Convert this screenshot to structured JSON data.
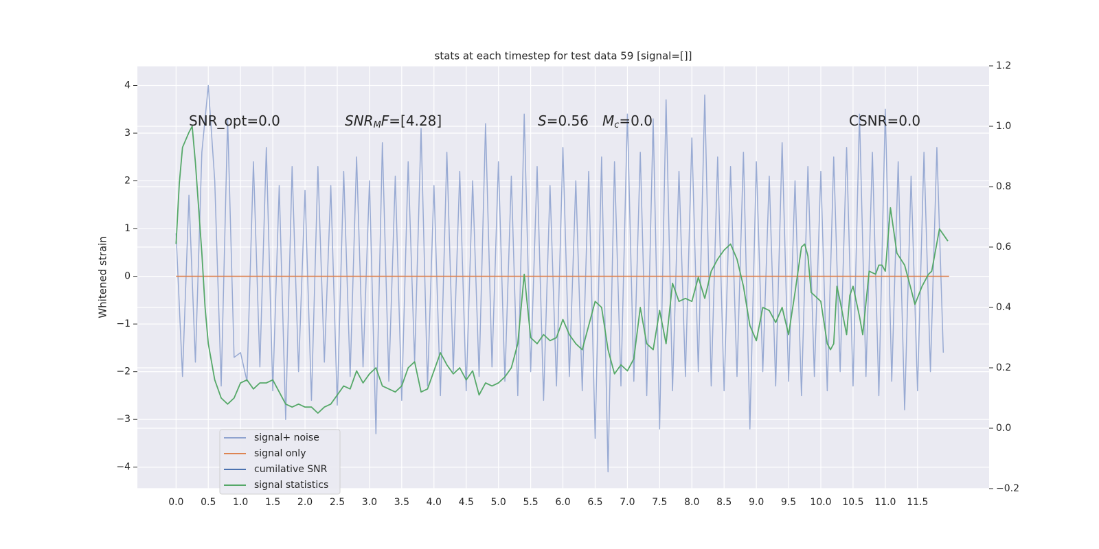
{
  "chart_data": {
    "type": "line",
    "title": "stats at each timestep for test data 59 [signal=[]]",
    "ylabel": "Whitened strain",
    "xlim": [
      -0.6,
      12.61
    ],
    "ylim": [
      -4.45,
      4.41
    ],
    "y2lim": [
      -0.2,
      1.2
    ],
    "xticks": [
      {
        "value": 0,
        "label": "0.0"
      },
      0.5,
      {
        "value": 1,
        "label": "1.0"
      },
      1.5,
      {
        "value": 2,
        "label": "2.0"
      },
      2.5,
      {
        "value": 3,
        "label": "3.0"
      },
      3.5,
      {
        "value": 4,
        "label": "4.0"
      },
      4.5,
      {
        "value": 5,
        "label": "5.0"
      },
      5.5,
      {
        "value": 6,
        "label": "6.0"
      },
      6.5,
      {
        "value": 7,
        "label": "7.0"
      },
      7.5,
      {
        "value": 8,
        "label": "8.0"
      },
      8.5,
      {
        "value": 9,
        "label": "9.0"
      },
      9.5,
      {
        "value": 10,
        "label": "10.0"
      },
      10.5,
      {
        "value": 11,
        "label": "11.0"
      },
      11.5
    ],
    "yticks": [
      {
        "value": -4,
        "label": "−4"
      },
      {
        "value": -3,
        "label": "−3"
      },
      {
        "value": -2,
        "label": "−2"
      },
      {
        "value": -1,
        "label": "−1"
      },
      0,
      1,
      2,
      3,
      4
    ],
    "y2ticks": [
      {
        "value": -0.2,
        "label": "−0.2"
      },
      {
        "value": 0,
        "label": "0.0"
      },
      0.2,
      0.4,
      0.6,
      0.8,
      {
        "value": 1,
        "label": "1.0"
      },
      1.2
    ],
    "grid": true,
    "annotations": [
      [
        {
          "text": "SNR_opt=0.0",
          "style": "normal"
        }
      ],
      [
        {
          "text": "SNR",
          "style": "italic"
        },
        {
          "text": "M",
          "style": "italic-sub"
        },
        {
          "text": "F",
          "style": "italic"
        },
        {
          "text": "=[4.28]",
          "style": "normal"
        }
      ],
      [
        {
          "text": "S",
          "style": "italic"
        },
        {
          "text": "=0.56",
          "style": "normal"
        }
      ],
      [
        {
          "text": "M",
          "style": "italic"
        },
        {
          "text": "c",
          "style": "italic-sub"
        },
        {
          "text": "=0.0",
          "style": "normal"
        }
      ],
      [
        {
          "text": "CSNR=0.0",
          "style": "normal"
        }
      ]
    ],
    "series": [
      {
        "name": "signal+ noise",
        "color": "#8fa3cf",
        "axis": "y",
        "x": [
          0,
          0.1,
          0.2,
          0.3,
          0.4,
          0.5,
          0.6,
          0.7,
          0.8,
          0.9,
          1,
          1.1,
          1.2,
          1.3,
          1.4,
          1.5,
          1.6,
          1.7,
          1.8,
          1.9,
          2,
          2.1,
          2.2,
          2.3,
          2.4,
          2.5,
          2.6,
          2.7,
          2.8,
          2.9,
          3,
          3.1,
          3.2,
          3.3,
          3.4,
          3.5,
          3.6,
          3.7,
          3.8,
          3.9,
          4,
          4.1,
          4.2,
          4.3,
          4.4,
          4.5,
          4.6,
          4.7,
          4.8,
          4.9,
          5,
          5.1,
          5.2,
          5.3,
          5.4,
          5.5,
          5.6,
          5.7,
          5.8,
          5.9,
          6,
          6.1,
          6.2,
          6.3,
          6.4,
          6.5,
          6.6,
          6.7,
          6.8,
          6.9,
          7,
          7.1,
          7.2,
          7.3,
          7.4,
          7.5,
          7.6,
          7.7,
          7.8,
          7.9,
          8,
          8.1,
          8.2,
          8.3,
          8.4,
          8.5,
          8.6,
          8.7,
          8.8,
          8.9,
          9,
          9.1,
          9.2,
          9.3,
          9.4,
          9.5,
          9.6,
          9.7,
          9.8,
          9.9,
          10,
          10.1,
          10.2,
          10.3,
          10.4,
          10.5,
          10.6,
          10.7,
          10.8,
          10.9,
          11,
          11.1,
          11.2,
          11.3,
          11.4,
          11.5,
          11.6,
          11.7,
          11.8,
          11.9
        ],
        "values": [
          0.9,
          -2.1,
          1.7,
          -1.8,
          2.6,
          4.0,
          2.0,
          -2.3,
          3.3,
          -1.7,
          -1.6,
          -2.2,
          2.4,
          -1.9,
          2.7,
          -2.4,
          1.9,
          -3.0,
          2.3,
          -2.0,
          1.8,
          -2.6,
          2.3,
          -1.8,
          1.9,
          -2.7,
          2.2,
          -2.1,
          2.5,
          -1.9,
          2.0,
          -3.3,
          2.8,
          -2.2,
          2.1,
          -2.6,
          2.4,
          -1.8,
          3.1,
          -2.3,
          1.9,
          -2.5,
          2.6,
          -2.0,
          2.2,
          -2.4,
          2.0,
          -2.1,
          3.2,
          -1.9,
          2.4,
          -2.2,
          2.1,
          -2.5,
          3.4,
          -2.0,
          2.3,
          -2.6,
          1.9,
          -2.3,
          2.7,
          -2.1,
          2.0,
          -2.4,
          2.2,
          -3.4,
          2.5,
          -4.1,
          2.4,
          -2.3,
          3.4,
          -2.2,
          2.6,
          -2.5,
          3.3,
          -3.2,
          3.7,
          -2.4,
          2.2,
          -2.1,
          2.9,
          -2.0,
          3.8,
          -2.3,
          2.5,
          -2.4,
          2.3,
          -2.1,
          2.6,
          -3.2,
          2.4,
          -2.0,
          2.1,
          -2.3,
          2.8,
          -2.2,
          2.0,
          -2.5,
          2.3,
          -2.1,
          2.2,
          -2.4,
          2.5,
          -2.0,
          2.7,
          -2.3,
          3.4,
          -2.1,
          2.6,
          -2.5,
          3.5,
          -2.2,
          2.4,
          -2.8,
          2.1,
          -2.4,
          2.6,
          -2.0,
          2.7,
          -1.6
        ]
      },
      {
        "name": "signal only",
        "color": "#dd8452",
        "axis": "y",
        "x": [
          0,
          11.99
        ],
        "values": [
          0,
          0
        ]
      },
      {
        "name": "cumilative SNR",
        "color": "#4c72b0",
        "axis": "y2",
        "x": [],
        "values": []
      },
      {
        "name": "signal statistics",
        "color": "#55a868",
        "axis": "y2",
        "x": [
          0,
          0.05,
          0.1,
          0.2,
          0.25,
          0.3,
          0.4,
          0.45,
          0.5,
          0.6,
          0.7,
          0.8,
          0.9,
          1,
          1.1,
          1.2,
          1.3,
          1.4,
          1.5,
          1.6,
          1.7,
          1.8,
          1.9,
          2,
          2.1,
          2.2,
          2.3,
          2.4,
          2.5,
          2.6,
          2.7,
          2.8,
          2.9,
          3,
          3.1,
          3.2,
          3.3,
          3.4,
          3.5,
          3.6,
          3.7,
          3.8,
          3.9,
          4,
          4.1,
          4.2,
          4.3,
          4.4,
          4.5,
          4.6,
          4.7,
          4.8,
          4.9,
          5,
          5.1,
          5.2,
          5.3,
          5.4,
          5.5,
          5.6,
          5.7,
          5.8,
          5.9,
          6,
          6.1,
          6.2,
          6.3,
          6.4,
          6.5,
          6.6,
          6.7,
          6.8,
          6.9,
          7,
          7.1,
          7.2,
          7.3,
          7.4,
          7.5,
          7.6,
          7.7,
          7.8,
          7.9,
          8,
          8.1,
          8.2,
          8.3,
          8.4,
          8.5,
          8.6,
          8.7,
          8.8,
          8.9,
          9,
          9.1,
          9.2,
          9.3,
          9.4,
          9.5,
          9.6,
          9.7,
          9.75,
          9.8,
          9.85,
          9.9,
          10,
          10.1,
          10.15,
          10.2,
          10.25,
          10.3,
          10.4,
          10.45,
          10.5,
          10.6,
          10.65,
          10.75,
          10.85,
          10.9,
          10.95,
          11,
          11.08,
          11.18,
          11.3,
          11.4,
          11.46,
          11.57,
          11.67,
          11.72,
          11.84,
          11.97
        ],
        "values": [
          0.61,
          0.81,
          0.93,
          0.98,
          1.0,
          0.88,
          0.58,
          0.4,
          0.28,
          0.16,
          0.1,
          0.08,
          0.1,
          0.15,
          0.16,
          0.13,
          0.15,
          0.15,
          0.16,
          0.12,
          0.08,
          0.07,
          0.08,
          0.07,
          0.07,
          0.05,
          0.07,
          0.08,
          0.11,
          0.14,
          0.13,
          0.19,
          0.15,
          0.18,
          0.2,
          0.14,
          0.13,
          0.12,
          0.14,
          0.2,
          0.22,
          0.12,
          0.13,
          0.19,
          0.25,
          0.21,
          0.18,
          0.2,
          0.16,
          0.19,
          0.11,
          0.15,
          0.14,
          0.15,
          0.17,
          0.2,
          0.28,
          0.51,
          0.3,
          0.28,
          0.31,
          0.29,
          0.3,
          0.36,
          0.31,
          0.28,
          0.26,
          0.34,
          0.42,
          0.4,
          0.26,
          0.18,
          0.21,
          0.19,
          0.23,
          0.4,
          0.28,
          0.26,
          0.39,
          0.28,
          0.48,
          0.42,
          0.43,
          0.42,
          0.5,
          0.43,
          0.52,
          0.56,
          0.59,
          0.61,
          0.56,
          0.47,
          0.34,
          0.29,
          0.4,
          0.39,
          0.35,
          0.4,
          0.31,
          0.45,
          0.6,
          0.61,
          0.57,
          0.45,
          0.44,
          0.42,
          0.28,
          0.26,
          0.28,
          0.47,
          0.42,
          0.31,
          0.44,
          0.47,
          0.37,
          0.31,
          0.52,
          0.51,
          0.54,
          0.54,
          0.52,
          0.73,
          0.58,
          0.54,
          0.46,
          0.41,
          0.47,
          0.51,
          0.52,
          0.66,
          0.62
        ]
      }
    ]
  }
}
